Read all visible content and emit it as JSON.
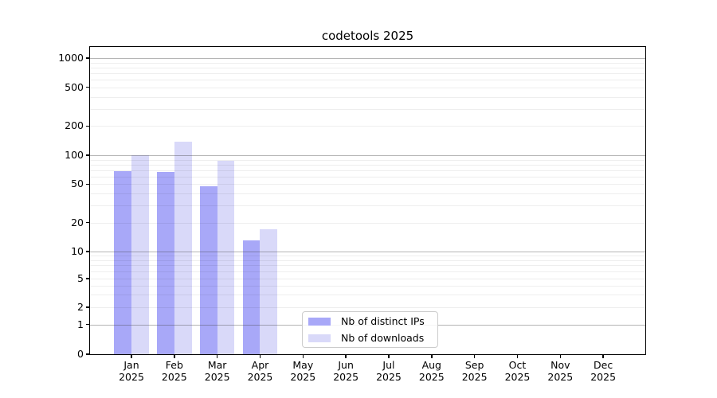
{
  "title": "codetools 2025",
  "legend": {
    "items": [
      {
        "label": "Nb of distinct IPs",
        "swatch": "legend-swatch-distinct-ips",
        "color": "#a8a8f8"
      },
      {
        "label": "Nb of downloads",
        "swatch": "legend-swatch-downloads",
        "color": "#d9d9f9"
      }
    ]
  },
  "chart_data": {
    "type": "bar",
    "title": "codetools 2025",
    "categories": [
      "Jan 2025",
      "Feb 2025",
      "Mar 2025",
      "Apr 2025",
      "May 2025",
      "Jun 2025",
      "Jul 2025",
      "Aug 2025",
      "Sep 2025",
      "Oct 2025",
      "Nov 2025",
      "Dec 2025"
    ],
    "series": [
      {
        "name": "Nb of distinct IPs",
        "color": "#a8a8f8",
        "values": [
          68,
          67,
          48,
          13,
          0,
          0,
          0,
          0,
          0,
          0,
          0,
          0
        ]
      },
      {
        "name": "Nb of downloads",
        "color": "#d9d9f9",
        "values": [
          100,
          138,
          87,
          17,
          0,
          0,
          0,
          0,
          0,
          0,
          0,
          0
        ]
      }
    ],
    "xlabel": "",
    "ylabel": "",
    "yscale": "symlog",
    "yticks": [
      0,
      1,
      2,
      5,
      10,
      20,
      50,
      100,
      200,
      500,
      1000
    ],
    "ylim": [
      0,
      1400
    ],
    "grid": "horizontal, major lines at powers of 10, faint log minors",
    "legend_position": "lower center inside plot",
    "bar_layout": "grouped pair per month, bars touching"
  }
}
